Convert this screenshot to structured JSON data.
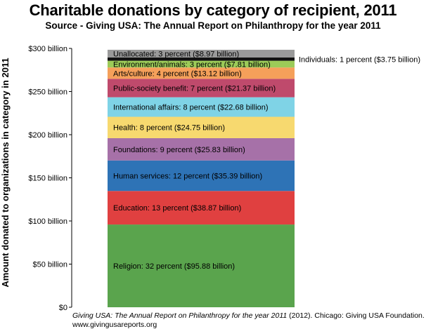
{
  "chart_data": {
    "type": "bar",
    "stacked": true,
    "title": "Charitable donations by category of recipient, 2011",
    "subtitle": "Source - Giving USA: The Annual Report on Philanthropy for the year 2011",
    "ylabel": "Amount donated to organizations in category in 2011",
    "ylim": [
      0,
      300
    ],
    "y_unit": "billion USD",
    "yticks": [
      "$0",
      "$50 billion",
      "$100 billion",
      "$150 billion",
      "$200 billion",
      "$250 billion",
      "$300 billion"
    ],
    "ytick_values": [
      0,
      50,
      100,
      150,
      200,
      250,
      300
    ],
    "grid": false,
    "legend": "none",
    "segments": [
      {
        "label": "Religion: 32 percent ($95.88 billion)",
        "value": 95.88,
        "color": "#5aa44d"
      },
      {
        "label": "Education: 13 percent ($38.87 billion)",
        "value": 38.87,
        "color": "#e04040"
      },
      {
        "label": "Human services: 12 percent ($35.39 billion)",
        "value": 35.39,
        "color": "#2e73b6"
      },
      {
        "label": "Foundations: 9 percent ($25.83 billion)",
        "value": 25.83,
        "color": "#a671a8"
      },
      {
        "label": "Health: 8 percent ($24.75 billion)",
        "value": 24.75,
        "color": "#f7d96f"
      },
      {
        "label": "International affairs: 8 percent ($22.68 billion)",
        "value": 22.68,
        "color": "#7fd3e6"
      },
      {
        "label": "Public-society benefit: 7 percent ($21.37 billion)",
        "value": 21.37,
        "color": "#bf4a6c"
      },
      {
        "label": "Arts/culture: 4 percent ($13.12 billion)",
        "value": 13.12,
        "color": "#f5a05a"
      },
      {
        "label": "Environment/animals: 3 percent ($7.81 billion)",
        "value": 7.81,
        "color": "#9ccb58"
      },
      {
        "label": "Individuals: 1 percent ($3.75 billion)",
        "value": 3.75,
        "color": "#111111",
        "label_outside": true
      },
      {
        "label": "Unallocated: 3 percent ($8.97 billion)",
        "value": 8.97,
        "color": "#9a9a9a"
      }
    ]
  },
  "caption": {
    "line1_italic": "Giving USA: The Annual Report on Philanthropy for the year 2011",
    "line1_rest": " (2012). Chicago: Giving USA Foundation.",
    "line2": "www.givingusareports.org"
  }
}
